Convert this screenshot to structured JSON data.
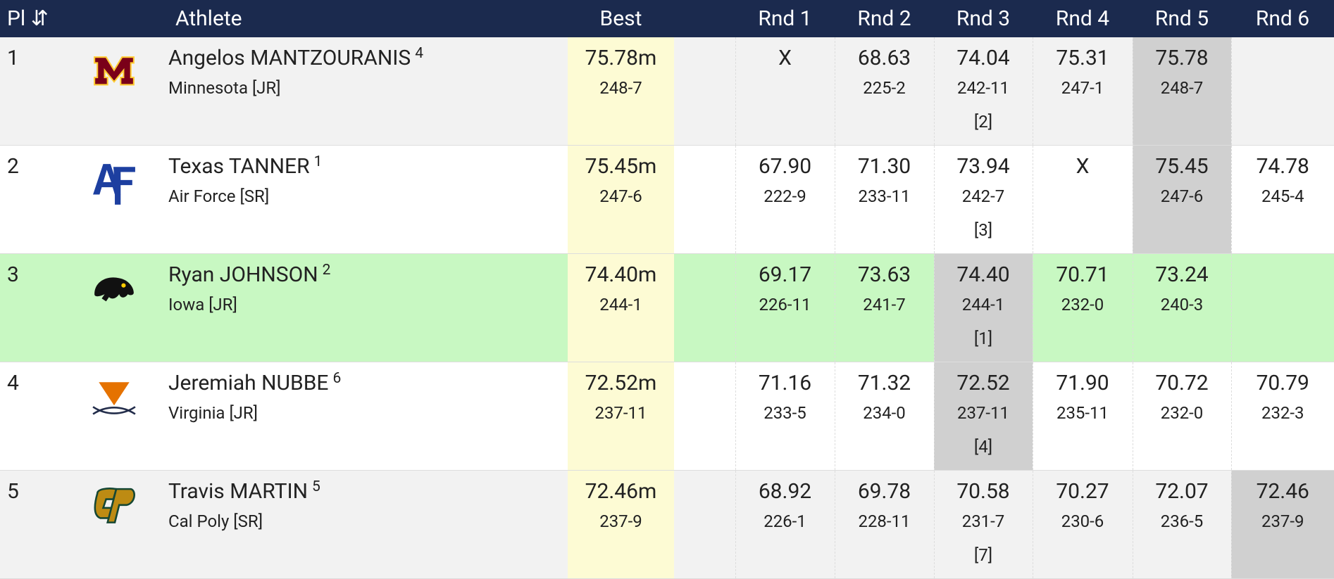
{
  "header": [
    "Pl",
    "Athlete",
    "Best",
    "Rnd 1",
    "Rnd 2",
    "Rnd 3",
    "Rnd 4",
    "Rnd 5",
    "Rnd 6"
  ],
  "sort_icon": "⇵",
  "rows": [
    {
      "place": "1",
      "name": "Angelos MANTZOURANIS",
      "seed": "4",
      "team": "Minnesota [JR]",
      "best": "75.78m",
      "best_imperial": "248-7",
      "best_round": 4,
      "highlight": false,
      "background": "#f2f2f2",
      "rounds": [
        {
          "mark": "X"
        },
        {
          "mark": "68.63",
          "imperial": "225-2"
        },
        {
          "mark": "74.04",
          "imperial": "242-11",
          "rank": "[2]"
        },
        {
          "mark": "75.31",
          "imperial": "247-1"
        },
        {
          "mark": "75.78",
          "imperial": "248-7"
        },
        null
      ]
    },
    {
      "place": "2",
      "name": "Texas TANNER",
      "seed": "1",
      "team": "Air Force [SR]",
      "best": "75.45m",
      "best_imperial": "247-6",
      "best_round": 4,
      "highlight": false,
      "background": "#ffffff",
      "rounds": [
        {
          "mark": "67.90",
          "imperial": "222-9"
        },
        {
          "mark": "71.30",
          "imperial": "233-11"
        },
        {
          "mark": "73.94",
          "imperial": "242-7",
          "rank": "[3]"
        },
        {
          "mark": "X"
        },
        {
          "mark": "75.45",
          "imperial": "247-6"
        },
        {
          "mark": "74.78",
          "imperial": "245-4"
        }
      ]
    },
    {
      "place": "3",
      "name": "Ryan JOHNSON",
      "seed": "2",
      "team": "Iowa [JR]",
      "best": "74.40m",
      "best_imperial": "244-1",
      "best_round": 2,
      "highlight": true,
      "background": "#c8f8c2",
      "rounds": [
        {
          "mark": "69.17",
          "imperial": "226-11"
        },
        {
          "mark": "73.63",
          "imperial": "241-7"
        },
        {
          "mark": "74.40",
          "imperial": "244-1",
          "rank": "[1]"
        },
        {
          "mark": "70.71",
          "imperial": "232-0"
        },
        {
          "mark": "73.24",
          "imperial": "240-3"
        },
        null
      ]
    },
    {
      "place": "4",
      "name": "Jeremiah NUBBE",
      "seed": "6",
      "team": "Virginia [JR]",
      "best": "72.52m",
      "best_imperial": "237-11",
      "best_round": 2,
      "highlight": false,
      "background": "#ffffff",
      "rounds": [
        {
          "mark": "71.16",
          "imperial": "233-5"
        },
        {
          "mark": "71.32",
          "imperial": "234-0"
        },
        {
          "mark": "72.52",
          "imperial": "237-11",
          "rank": "[4]"
        },
        {
          "mark": "71.90",
          "imperial": "235-11"
        },
        {
          "mark": "70.72",
          "imperial": "232-0"
        },
        {
          "mark": "70.79",
          "imperial": "232-3"
        }
      ]
    },
    {
      "place": "5",
      "name": "Travis MARTIN",
      "seed": "5",
      "team": "Cal Poly [SR]",
      "best": "72.46m",
      "best_imperial": "237-9",
      "best_round": 5,
      "highlight": false,
      "background": "#f2f2f2",
      "rounds": [
        {
          "mark": "68.92",
          "imperial": "226-1"
        },
        {
          "mark": "69.78",
          "imperial": "228-11"
        },
        {
          "mark": "70.58",
          "imperial": "231-7",
          "rank": "[7]"
        },
        {
          "mark": "70.27",
          "imperial": "230-6"
        },
        {
          "mark": "72.07",
          "imperial": "236-5"
        },
        {
          "mark": "72.46",
          "imperial": "237-9"
        }
      ]
    }
  ]
}
